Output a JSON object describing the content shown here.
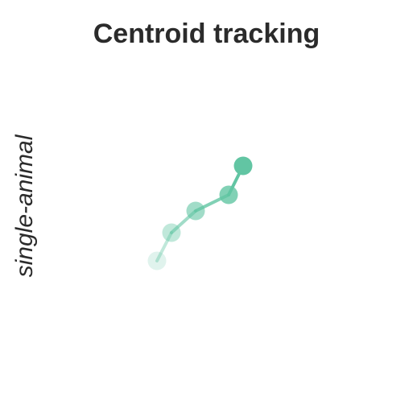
{
  "header": {
    "title": "Centroid tracking"
  },
  "row_label": "single-animal",
  "track": {
    "color": "#62c5a3",
    "points": [
      {
        "step": 1,
        "opacity": 0.2
      },
      {
        "step": 2,
        "opacity": 0.4
      },
      {
        "step": 3,
        "opacity": 0.6
      },
      {
        "step": 4,
        "opacity": 0.8
      },
      {
        "step": 5,
        "opacity": 1.0
      }
    ]
  }
}
